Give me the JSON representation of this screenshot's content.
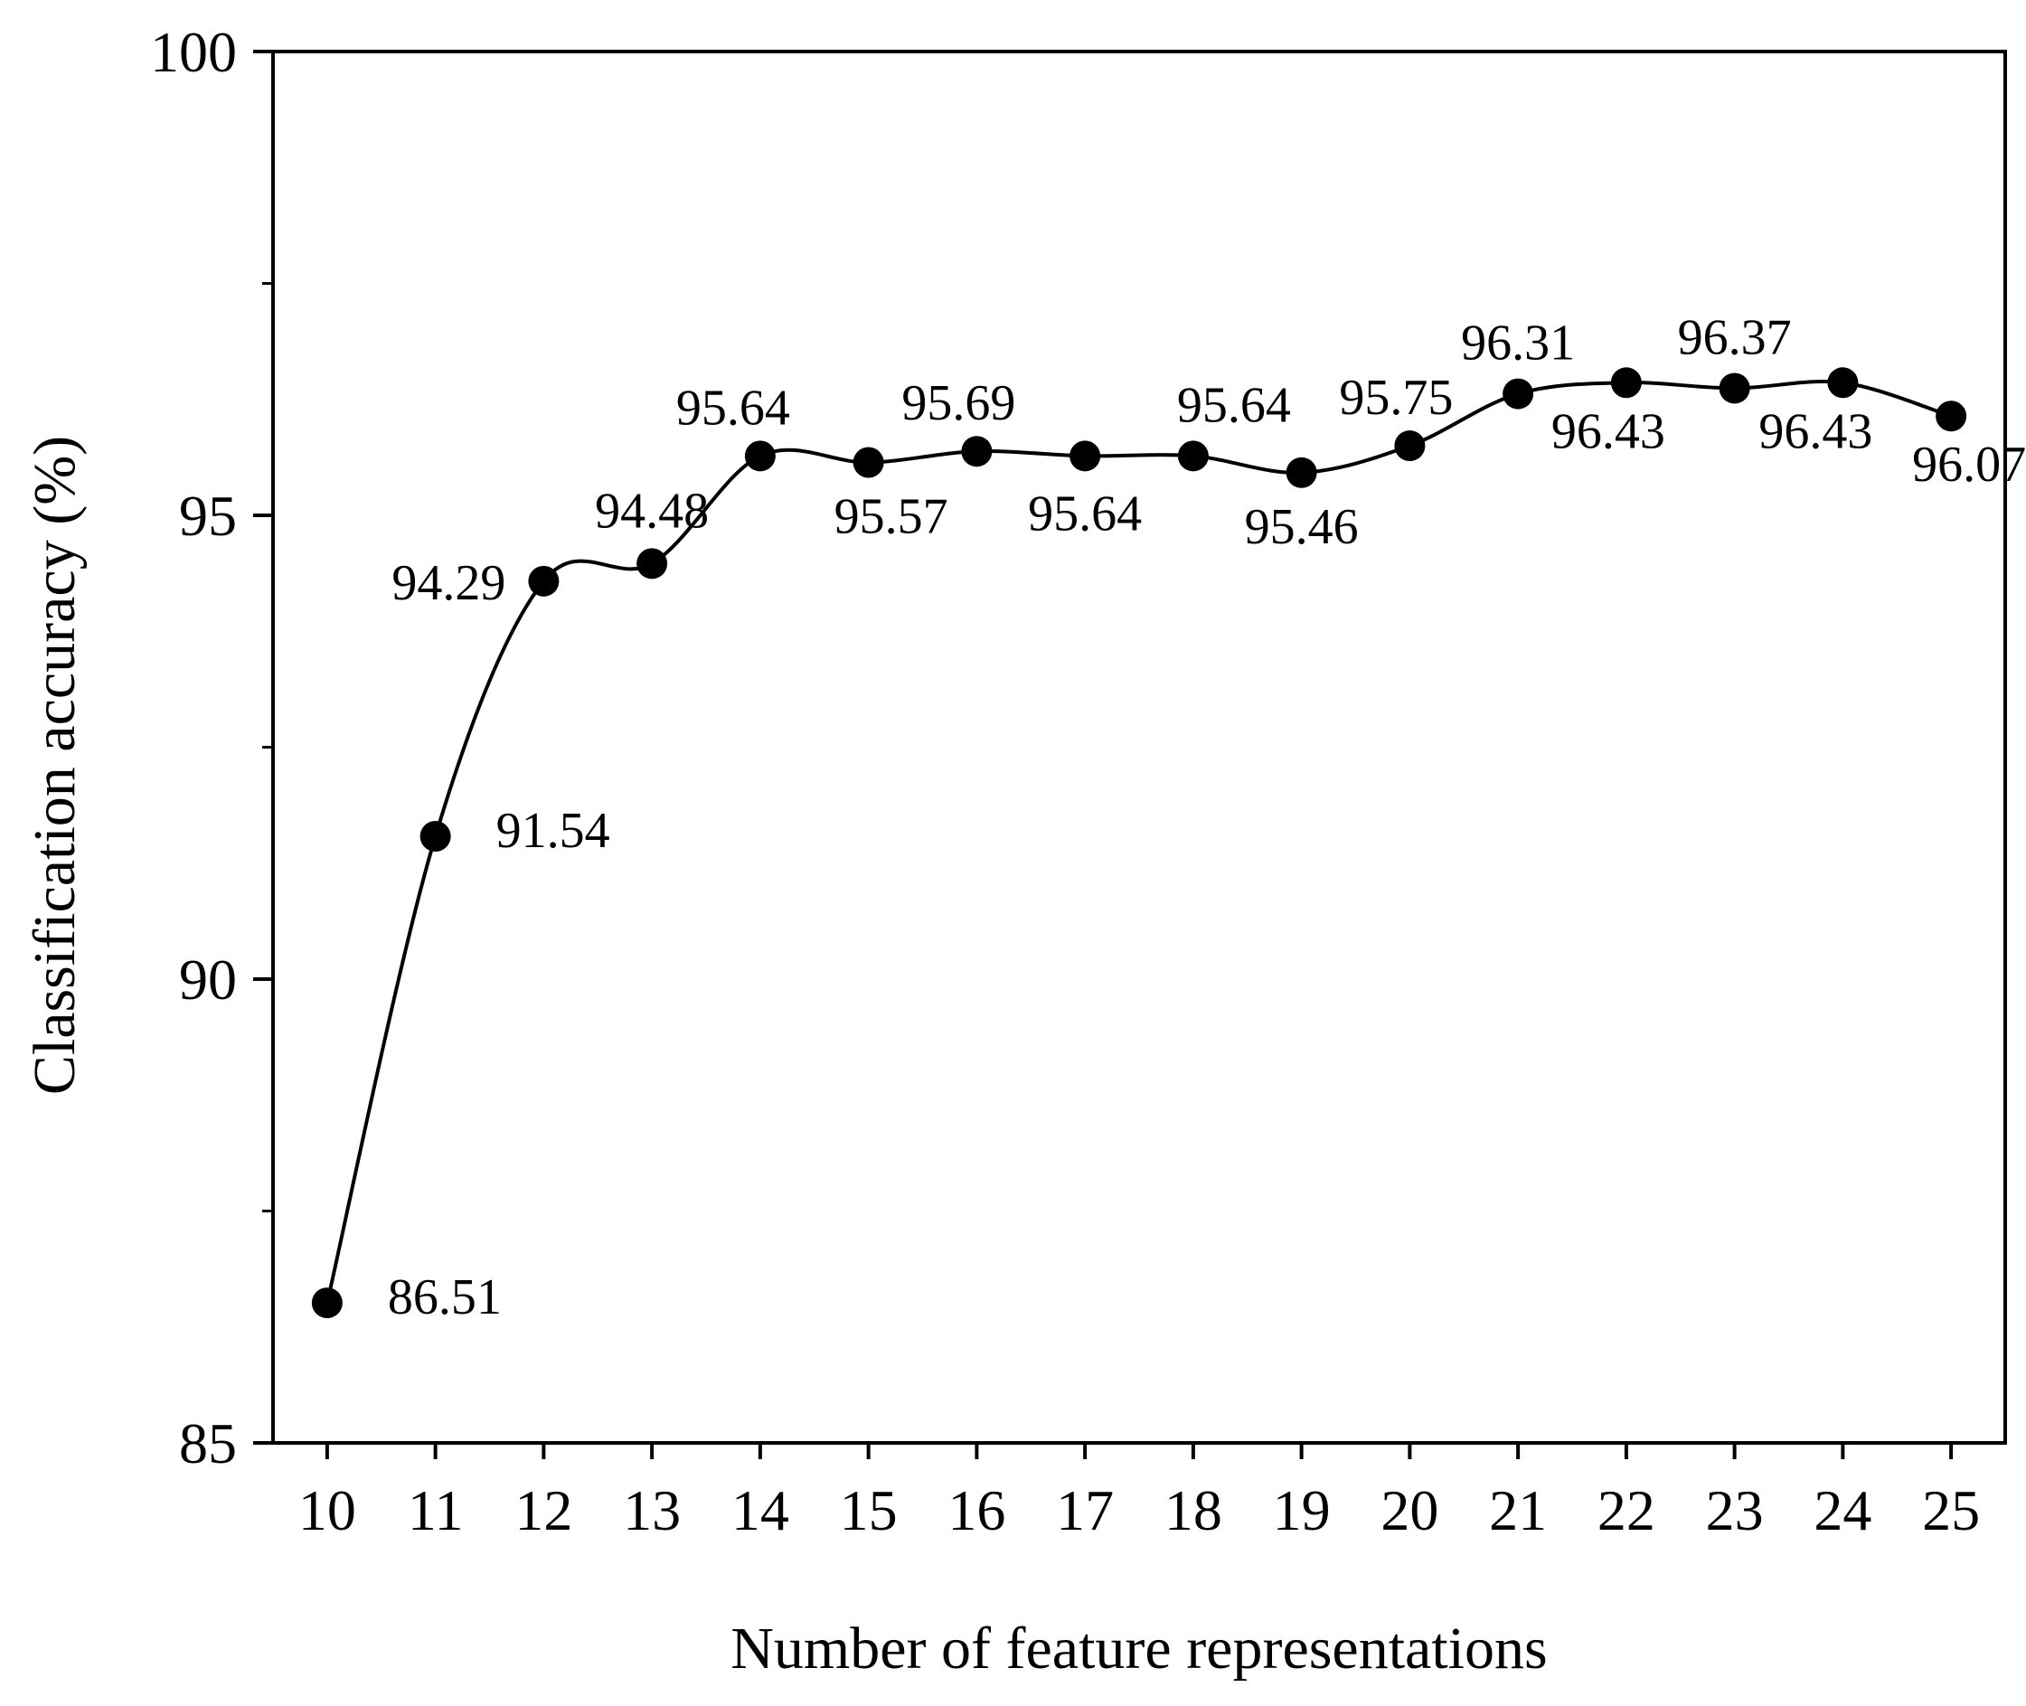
{
  "chart_data": {
    "type": "line",
    "xlabel": "Number of feature representations",
    "ylabel": "Classification accuracy (%)",
    "xlim": [
      9.5,
      25.5
    ],
    "ylim": [
      85,
      100
    ],
    "x_ticks": [
      "10",
      "11",
      "12",
      "13",
      "14",
      "15",
      "16",
      "17",
      "18",
      "19",
      "20",
      "21",
      "22",
      "23",
      "24",
      "25"
    ],
    "y_ticks": [
      "85",
      "90",
      "95",
      "100"
    ],
    "series": [
      {
        "x": [
          10,
          11,
          12,
          13,
          14,
          15,
          16,
          17,
          18,
          19,
          20,
          21,
          22,
          23,
          24,
          25
        ],
        "values": [
          86.51,
          91.54,
          94.29,
          94.48,
          95.64,
          95.57,
          95.69,
          95.64,
          95.64,
          95.46,
          95.75,
          96.31,
          96.43,
          96.37,
          96.43,
          96.07
        ],
        "labels": [
          "86.51",
          "91.54",
          "94.29",
          "94.48",
          "95.64",
          "95.57",
          "95.69",
          "95.64",
          "95.64",
          "95.46",
          "95.75",
          "96.31",
          "96.43",
          "96.37",
          "96.43",
          "96.07"
        ]
      }
    ],
    "line_color": "#000000",
    "marker": "filled-circle",
    "grid": false,
    "legend": "none"
  }
}
